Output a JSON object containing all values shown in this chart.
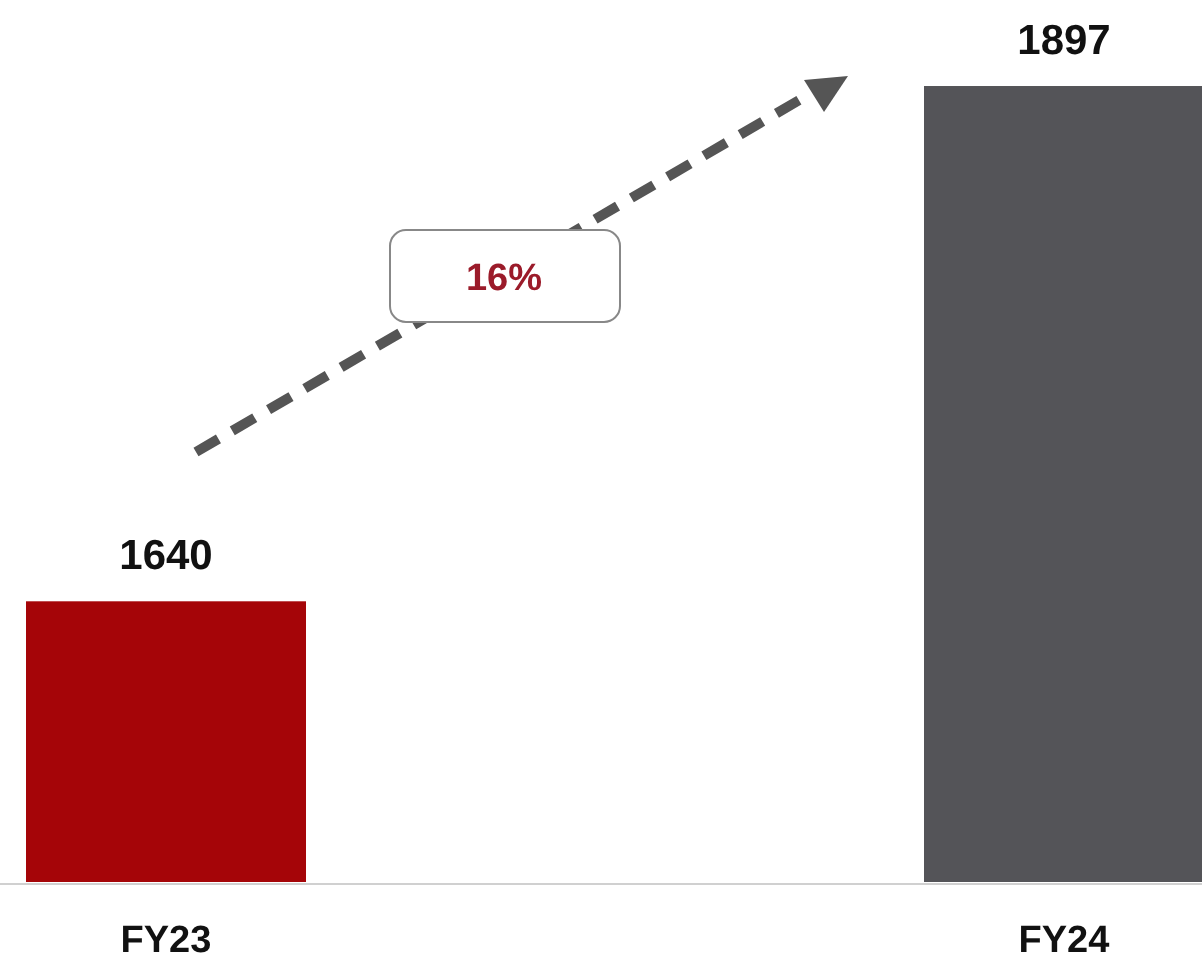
{
  "chart_data": {
    "type": "bar",
    "categories": [
      "FY23",
      "FY24"
    ],
    "values": [
      1640,
      1897
    ],
    "colors": [
      "#a50508",
      "#545458"
    ],
    "ylim": [
      1500,
      1900
    ],
    "data_labels": true,
    "annotations": [
      "16%"
    ]
  }
}
